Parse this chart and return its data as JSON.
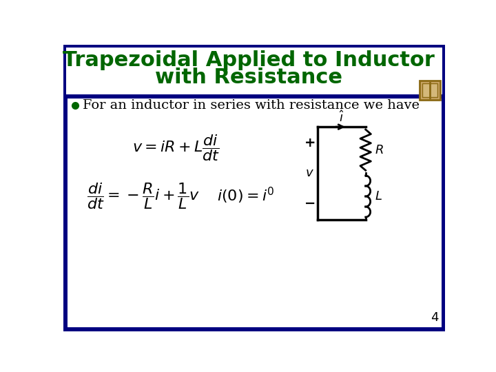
{
  "title_line1": "Trapezoidal Applied to Inductor",
  "title_line2": "with Resistance",
  "title_color": "#006600",
  "title_fontsize": 22,
  "border_color": "#000080",
  "border_width": 5,
  "header_bar_color": "#000080",
  "bullet_text": "For an inductor in series with resistance we have",
  "bullet_color": "#000000",
  "bullet_fontsize": 14,
  "bullet_marker_color": "#006600",
  "eq_fontsize": 14,
  "page_number": "4",
  "page_number_fontsize": 13,
  "background_color": "#ffffff",
  "icon_outer_color": "#8B6914",
  "icon_inner_color": "#C8A464"
}
